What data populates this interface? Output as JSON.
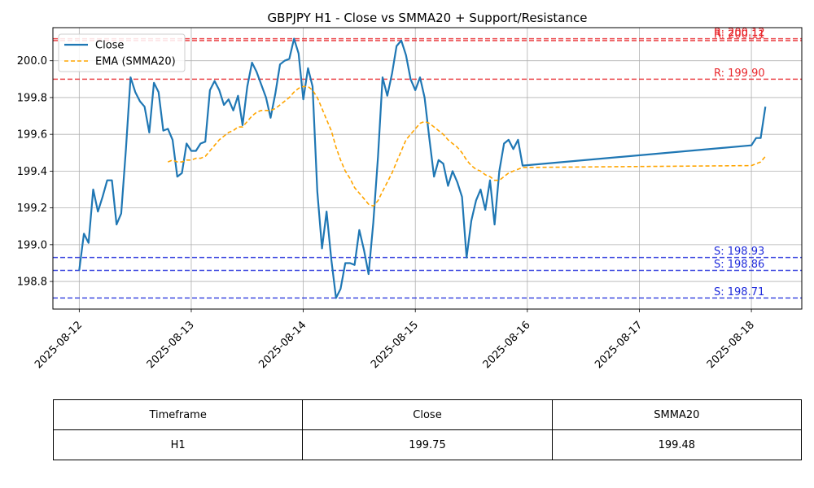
{
  "chart_data": {
    "type": "line",
    "title": "GBPJPY H1 - Close vs SMMA20 + Support/Resistance",
    "xlabel": "",
    "ylabel": "",
    "x_ticks": [
      "2025-08-12",
      "2025-08-13",
      "2025-08-14",
      "2025-08-15",
      "2025-08-16",
      "2025-08-17",
      "2025-08-18"
    ],
    "y_ticks": [
      "198.8",
      "199.0",
      "199.2",
      "199.4",
      "199.6",
      "199.8",
      "200.0"
    ],
    "ylim": [
      198.65,
      200.18
    ],
    "xlim": [
      -0.235,
      6.45
    ],
    "grid": true,
    "legend_position": "top-left",
    "series": [
      {
        "name": "Close",
        "color": "#1f77b4",
        "style": "solid",
        "points": [
          [
            0.0,
            198.86
          ],
          [
            0.042,
            199.06
          ],
          [
            0.083,
            199.01
          ],
          [
            0.125,
            199.3
          ],
          [
            0.167,
            199.18
          ],
          [
            0.208,
            199.26
          ],
          [
            0.25,
            199.35
          ],
          [
            0.292,
            199.35
          ],
          [
            0.333,
            199.11
          ],
          [
            0.375,
            199.17
          ],
          [
            0.417,
            199.52
          ],
          [
            0.458,
            199.91
          ],
          [
            0.5,
            199.83
          ],
          [
            0.542,
            199.78
          ],
          [
            0.583,
            199.75
          ],
          [
            0.625,
            199.61
          ],
          [
            0.667,
            199.88
          ],
          [
            0.708,
            199.83
          ],
          [
            0.75,
            199.62
          ],
          [
            0.792,
            199.63
          ],
          [
            0.833,
            199.57
          ],
          [
            0.875,
            199.37
          ],
          [
            0.917,
            199.39
          ],
          [
            0.958,
            199.55
          ],
          [
            1.0,
            199.51
          ],
          [
            1.042,
            199.51
          ],
          [
            1.083,
            199.55
          ],
          [
            1.125,
            199.56
          ],
          [
            1.167,
            199.84
          ],
          [
            1.208,
            199.89
          ],
          [
            1.25,
            199.84
          ],
          [
            1.292,
            199.76
          ],
          [
            1.333,
            199.79
          ],
          [
            1.375,
            199.73
          ],
          [
            1.417,
            199.81
          ],
          [
            1.458,
            199.65
          ],
          [
            1.5,
            199.86
          ],
          [
            1.542,
            199.99
          ],
          [
            1.583,
            199.94
          ],
          [
            1.625,
            199.87
          ],
          [
            1.667,
            199.8
          ],
          [
            1.708,
            199.69
          ],
          [
            1.75,
            199.82
          ],
          [
            1.792,
            199.98
          ],
          [
            1.833,
            200.0
          ],
          [
            1.875,
            200.01
          ],
          [
            1.917,
            200.12
          ],
          [
            1.958,
            200.04
          ],
          [
            2.0,
            199.79
          ],
          [
            2.042,
            199.96
          ],
          [
            2.083,
            199.86
          ],
          [
            2.125,
            199.29
          ],
          [
            2.167,
            198.98
          ],
          [
            2.208,
            199.18
          ],
          [
            2.25,
            198.92
          ],
          [
            2.292,
            198.71
          ],
          [
            2.333,
            198.76
          ],
          [
            2.375,
            198.9
          ],
          [
            2.417,
            198.9
          ],
          [
            2.458,
            198.89
          ],
          [
            2.5,
            199.08
          ],
          [
            2.542,
            198.97
          ],
          [
            2.583,
            198.84
          ],
          [
            2.625,
            199.12
          ],
          [
            2.667,
            199.48
          ],
          [
            2.708,
            199.91
          ],
          [
            2.75,
            199.81
          ],
          [
            2.792,
            199.93
          ],
          [
            2.833,
            200.08
          ],
          [
            2.875,
            200.11
          ],
          [
            2.917,
            200.03
          ],
          [
            2.958,
            199.9
          ],
          [
            3.0,
            199.84
          ],
          [
            3.042,
            199.91
          ],
          [
            3.083,
            199.8
          ],
          [
            3.125,
            199.58
          ],
          [
            3.167,
            199.37
          ],
          [
            3.208,
            199.46
          ],
          [
            3.25,
            199.44
          ],
          [
            3.292,
            199.32
          ],
          [
            3.333,
            199.4
          ],
          [
            3.375,
            199.34
          ],
          [
            3.417,
            199.26
          ],
          [
            3.458,
            198.93
          ],
          [
            3.5,
            199.13
          ],
          [
            3.542,
            199.24
          ],
          [
            3.583,
            199.3
          ],
          [
            3.625,
            199.19
          ],
          [
            3.667,
            199.35
          ],
          [
            3.708,
            199.11
          ],
          [
            3.75,
            199.4
          ],
          [
            3.792,
            199.55
          ],
          [
            3.833,
            199.57
          ],
          [
            3.875,
            199.52
          ],
          [
            3.917,
            199.57
          ],
          [
            3.958,
            199.43
          ],
          [
            6.0,
            199.54
          ],
          [
            6.042,
            199.58
          ],
          [
            6.083,
            199.58
          ],
          [
            6.125,
            199.75
          ]
        ]
      },
      {
        "name": "EMA (SMMA20)",
        "color": "#ffa500",
        "style": "dashed",
        "points": [
          [
            0.792,
            199.45
          ],
          [
            0.833,
            199.46
          ],
          [
            0.875,
            199.45
          ],
          [
            0.917,
            199.45
          ],
          [
            0.958,
            199.46
          ],
          [
            1.0,
            199.46
          ],
          [
            1.042,
            199.47
          ],
          [
            1.083,
            199.47
          ],
          [
            1.125,
            199.48
          ],
          [
            1.167,
            199.51
          ],
          [
            1.208,
            199.54
          ],
          [
            1.25,
            199.57
          ],
          [
            1.292,
            199.59
          ],
          [
            1.333,
            199.61
          ],
          [
            1.375,
            199.62
          ],
          [
            1.417,
            199.64
          ],
          [
            1.458,
            199.64
          ],
          [
            1.5,
            199.67
          ],
          [
            1.542,
            199.7
          ],
          [
            1.583,
            199.72
          ],
          [
            1.625,
            199.73
          ],
          [
            1.667,
            199.73
          ],
          [
            1.708,
            199.73
          ],
          [
            1.75,
            199.74
          ],
          [
            1.792,
            199.76
          ],
          [
            1.833,
            199.78
          ],
          [
            1.875,
            199.8
          ],
          [
            1.917,
            199.83
          ],
          [
            1.958,
            199.85
          ],
          [
            2.0,
            199.86
          ],
          [
            2.042,
            199.86
          ],
          [
            2.083,
            199.84
          ],
          [
            2.125,
            199.8
          ],
          [
            2.167,
            199.74
          ],
          [
            2.208,
            199.68
          ],
          [
            2.25,
            199.62
          ],
          [
            2.292,
            199.53
          ],
          [
            2.333,
            199.46
          ],
          [
            2.375,
            199.4
          ],
          [
            2.417,
            199.36
          ],
          [
            2.458,
            199.31
          ],
          [
            2.5,
            199.28
          ],
          [
            2.542,
            199.25
          ],
          [
            2.583,
            199.22
          ],
          [
            2.625,
            199.21
          ],
          [
            2.667,
            199.24
          ],
          [
            2.708,
            199.29
          ],
          [
            2.75,
            199.34
          ],
          [
            2.792,
            199.39
          ],
          [
            2.833,
            199.45
          ],
          [
            2.875,
            199.51
          ],
          [
            2.917,
            199.57
          ],
          [
            2.958,
            199.6
          ],
          [
            3.0,
            199.63
          ],
          [
            3.042,
            199.66
          ],
          [
            3.083,
            199.67
          ],
          [
            3.125,
            199.66
          ],
          [
            3.167,
            199.64
          ],
          [
            3.208,
            199.62
          ],
          [
            3.25,
            199.6
          ],
          [
            3.292,
            199.57
          ],
          [
            3.333,
            199.55
          ],
          [
            3.375,
            199.53
          ],
          [
            3.417,
            199.5
          ],
          [
            3.458,
            199.46
          ],
          [
            3.5,
            199.43
          ],
          [
            3.542,
            199.41
          ],
          [
            3.583,
            199.4
          ],
          [
            3.625,
            199.38
          ],
          [
            3.667,
            199.37
          ],
          [
            3.708,
            199.35
          ],
          [
            3.75,
            199.35
          ],
          [
            3.792,
            199.37
          ],
          [
            3.833,
            199.39
          ],
          [
            3.875,
            199.4
          ],
          [
            3.917,
            199.41
          ],
          [
            3.958,
            199.42
          ],
          [
            6.0,
            199.43
          ],
          [
            6.042,
            199.44
          ],
          [
            6.083,
            199.45
          ],
          [
            6.125,
            199.48
          ]
        ]
      }
    ],
    "levels": [
      {
        "kind": "resistance",
        "value": 200.12,
        "label": "R: 200.12",
        "color": "#e8262b"
      },
      {
        "kind": "resistance",
        "value": 200.11,
        "label": "R: 200.11",
        "color": "#e8262b"
      },
      {
        "kind": "resistance",
        "value": 199.9,
        "label": "R: 199.90",
        "color": "#e8262b"
      },
      {
        "kind": "support",
        "value": 198.93,
        "label": "S: 198.93",
        "color": "#1f2bdb"
      },
      {
        "kind": "support",
        "value": 198.86,
        "label": "S: 198.86",
        "color": "#1f2bdb"
      },
      {
        "kind": "support",
        "value": 198.71,
        "label": "S: 198.71",
        "color": "#1f2bdb"
      }
    ]
  },
  "table": {
    "headers": [
      "Timeframe",
      "Close",
      "SMMA20"
    ],
    "row": [
      "H1",
      "199.75",
      "199.48"
    ]
  }
}
